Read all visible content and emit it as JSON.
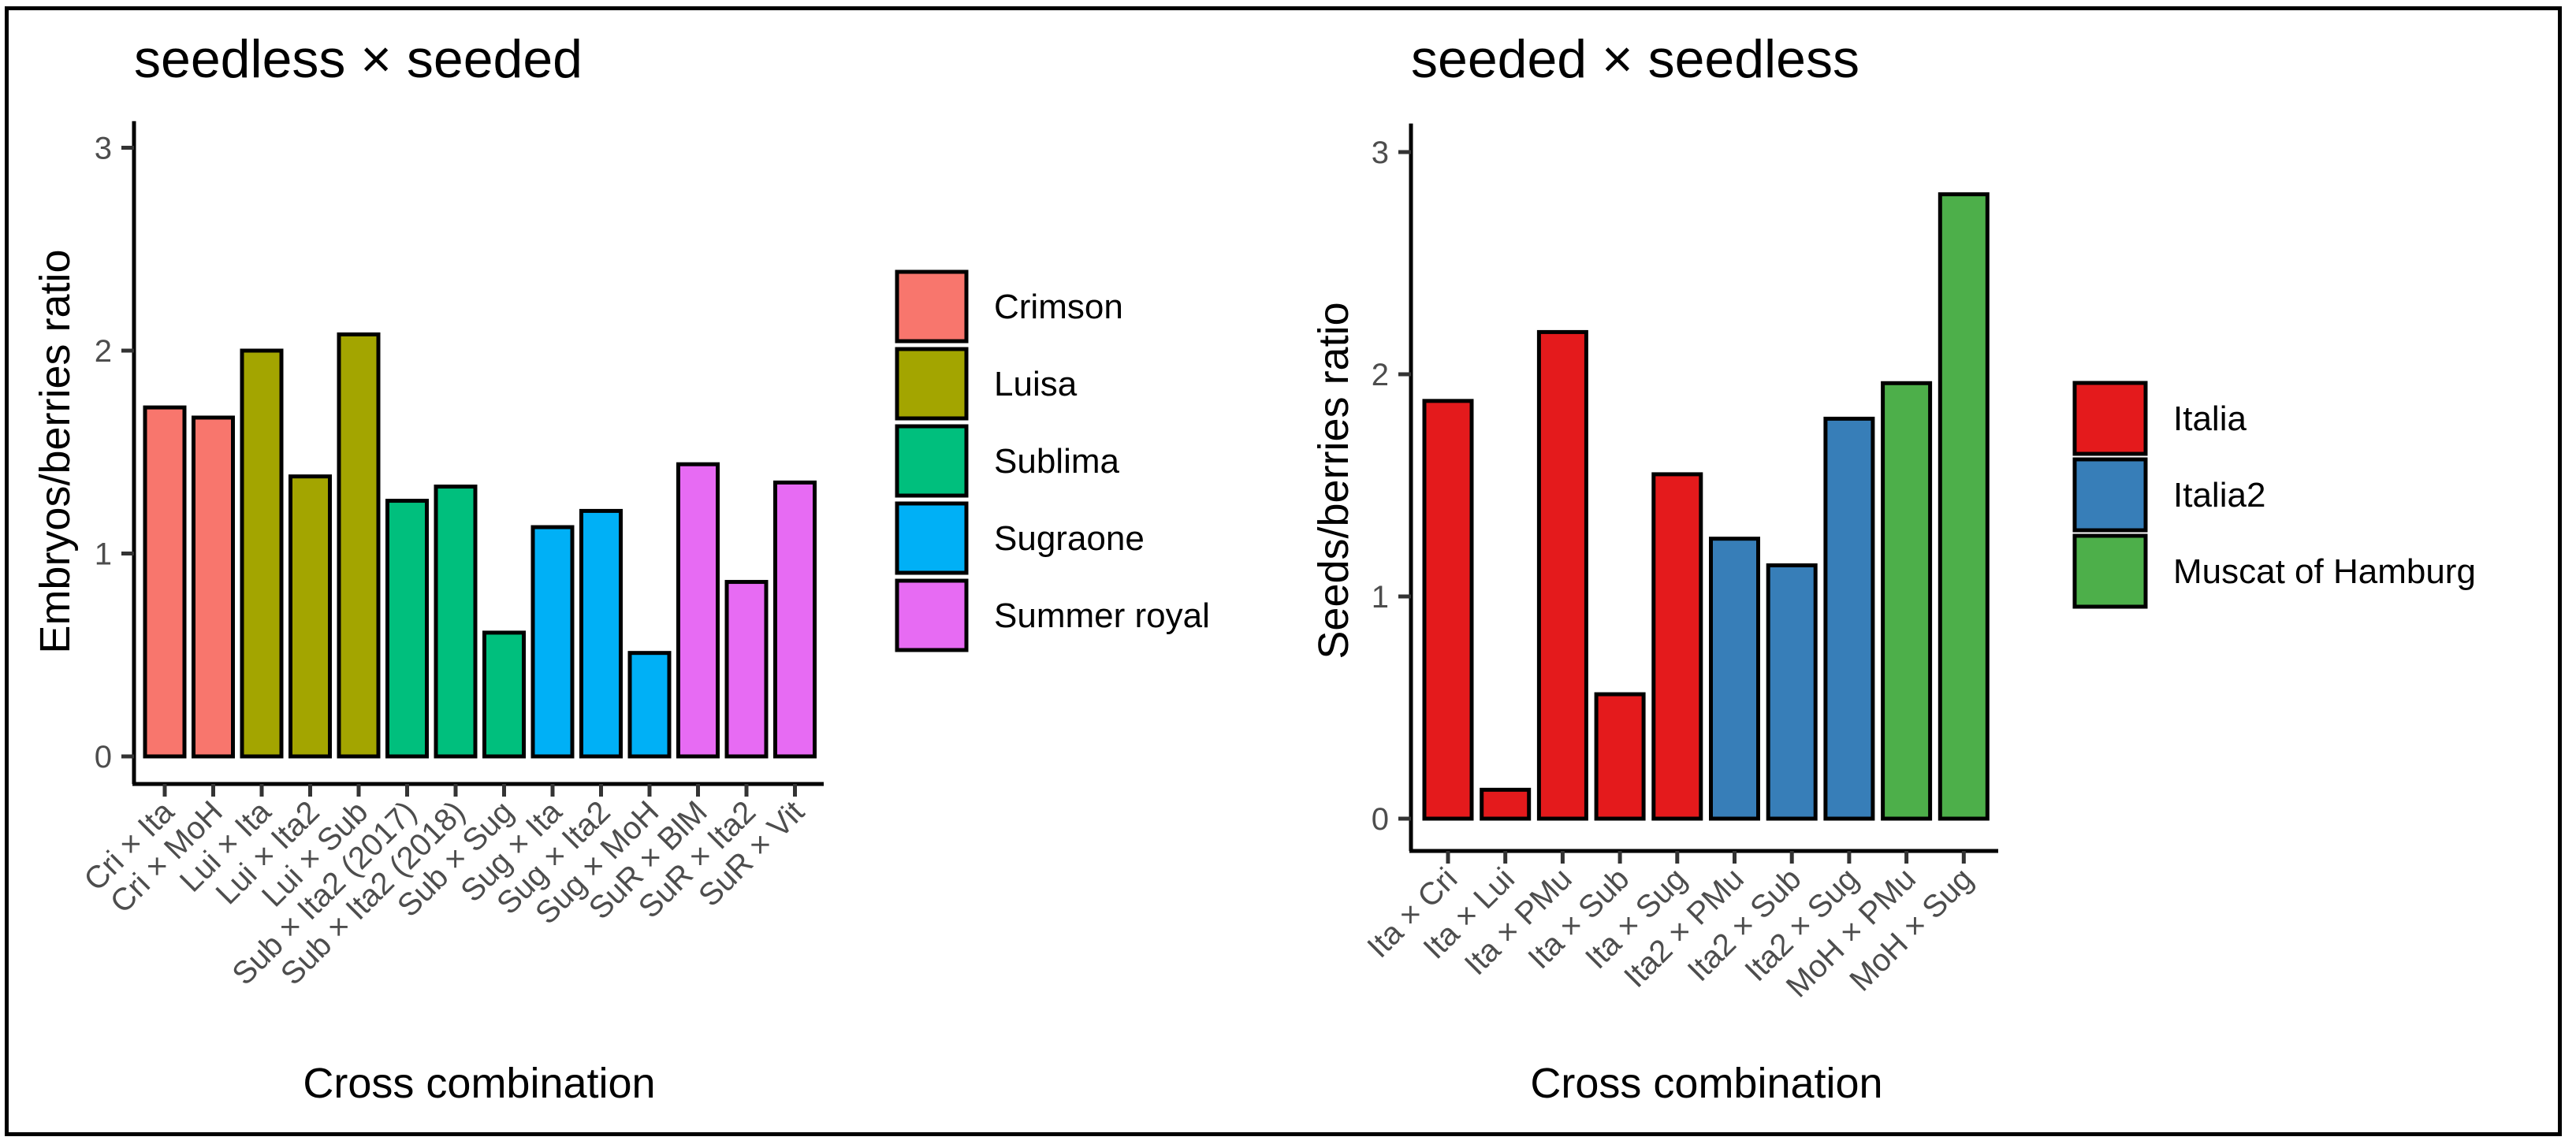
{
  "chart_data": [
    {
      "type": "bar",
      "title": "seedless × seeded",
      "xlabel": "Cross combination",
      "ylabel": "Embryos/berries ratio",
      "ylim": [
        0,
        3.1
      ],
      "yticks": [
        0,
        1,
        2,
        3
      ],
      "grid": false,
      "legend_position": "right",
      "categories": [
        "Cri × Ita",
        "Cri × MoH",
        "Lui × Ita",
        "Lui × Ita2",
        "Lui × Sub",
        "Sub × Ita2 (2017)",
        "Sub × Ita2 (2018)",
        "Sub × Sug",
        "Sug × Ita",
        "Sug × Ita2",
        "Sug × MoH",
        "SuR × BlM",
        "SuR × Ita2",
        "SuR × Vit"
      ],
      "values": [
        1.72,
        1.67,
        2.0,
        1.38,
        2.08,
        1.26,
        1.33,
        0.61,
        1.13,
        1.21,
        0.51,
        1.44,
        0.86,
        1.35
      ],
      "groups": [
        "Crimson",
        "Crimson",
        "Luisa",
        "Luisa",
        "Luisa",
        "Sublima",
        "Sublima",
        "Sublima",
        "Sugraone",
        "Sugraone",
        "Sugraone",
        "Summer royal",
        "Summer royal",
        "Summer royal"
      ],
      "legend": [
        {
          "name": "Crimson",
          "color": "#F8766D"
        },
        {
          "name": "Luisa",
          "color": "#A3A500"
        },
        {
          "name": "Sublima",
          "color": "#00BF7D"
        },
        {
          "name": "Sugraone",
          "color": "#00B0F6"
        },
        {
          "name": "Summer royal",
          "color": "#E76BF3"
        }
      ]
    },
    {
      "type": "bar",
      "title": "seeded × seedless",
      "xlabel": "Cross combination",
      "ylabel": "Seeds/berries ratio",
      "ylim": [
        0,
        3.1
      ],
      "yticks": [
        0,
        1,
        2,
        3
      ],
      "grid": false,
      "legend_position": "right",
      "categories": [
        "Ita × Cri",
        "Ita × Lui",
        "Ita × PMu",
        "Ita × Sub",
        "Ita × Sug",
        "Ita2 × PMu",
        "Ita2 × Sub",
        "Ita2 × Sug",
        "MoH × PMu",
        "MoH × Sug"
      ],
      "values": [
        1.88,
        0.13,
        2.19,
        0.56,
        1.55,
        1.26,
        1.14,
        1.8,
        1.96,
        2.81
      ],
      "groups": [
        "Italia",
        "Italia",
        "Italia",
        "Italia",
        "Italia",
        "Italia2",
        "Italia2",
        "Italia2",
        "Muscat of Hamburg",
        "Muscat of Hamburg"
      ],
      "legend": [
        {
          "name": "Italia",
          "color": "#E41A1C"
        },
        {
          "name": "Italia2",
          "color": "#377EB8"
        },
        {
          "name": "Muscat of Hamburg",
          "color": "#4DAF4A"
        }
      ]
    }
  ]
}
